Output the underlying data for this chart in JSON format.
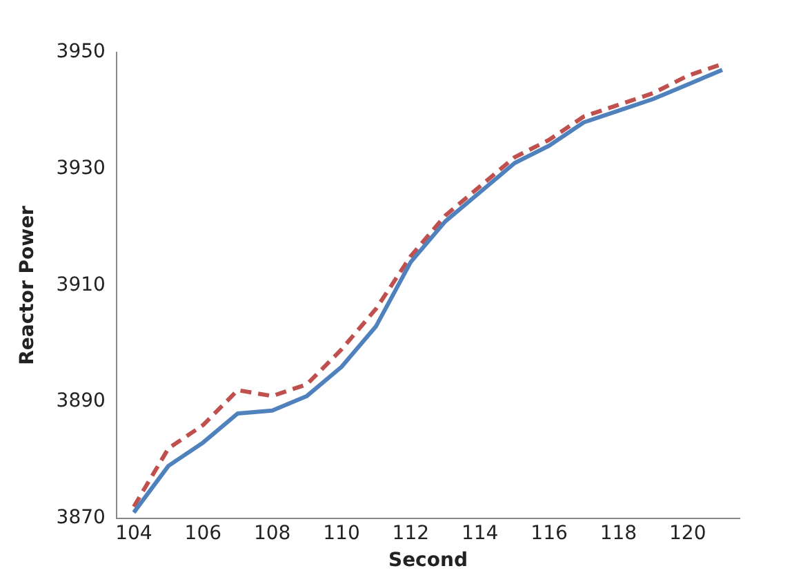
{
  "chart_data": {
    "type": "line",
    "xlabel": "Second",
    "ylabel": "Reactor Power",
    "x": [
      104,
      105,
      106,
      107,
      108,
      109,
      110,
      111,
      112,
      113,
      114,
      115,
      116,
      117,
      118,
      119,
      120,
      121
    ],
    "series": [
      {
        "color": "#4f81bd",
        "line_style": "solid",
        "values": [
          3871,
          3879,
          3883,
          3888,
          3888.5,
          3891,
          3896,
          3903,
          3914,
          3921,
          3926,
          3931,
          3934,
          3938,
          3940,
          3942,
          3944.5,
          3947
        ]
      },
      {
        "color": "#c0504d",
        "line_style": "dashed",
        "values": [
          3872,
          3882,
          3886,
          3892,
          3891,
          3893,
          3899,
          3906,
          3915,
          3922,
          3927,
          3932,
          3935,
          3939,
          3941,
          3943,
          3946,
          3948
        ]
      }
    ],
    "xlim": [
      103.5,
      121.5
    ],
    "xticks": [
      104,
      106,
      108,
      110,
      112,
      114,
      116,
      118,
      120
    ],
    "ylim": [
      3870,
      3950
    ],
    "yticks": [
      3870,
      3890,
      3910,
      3930,
      3950
    ],
    "grid": false,
    "legend": false,
    "marker": "none"
  }
}
